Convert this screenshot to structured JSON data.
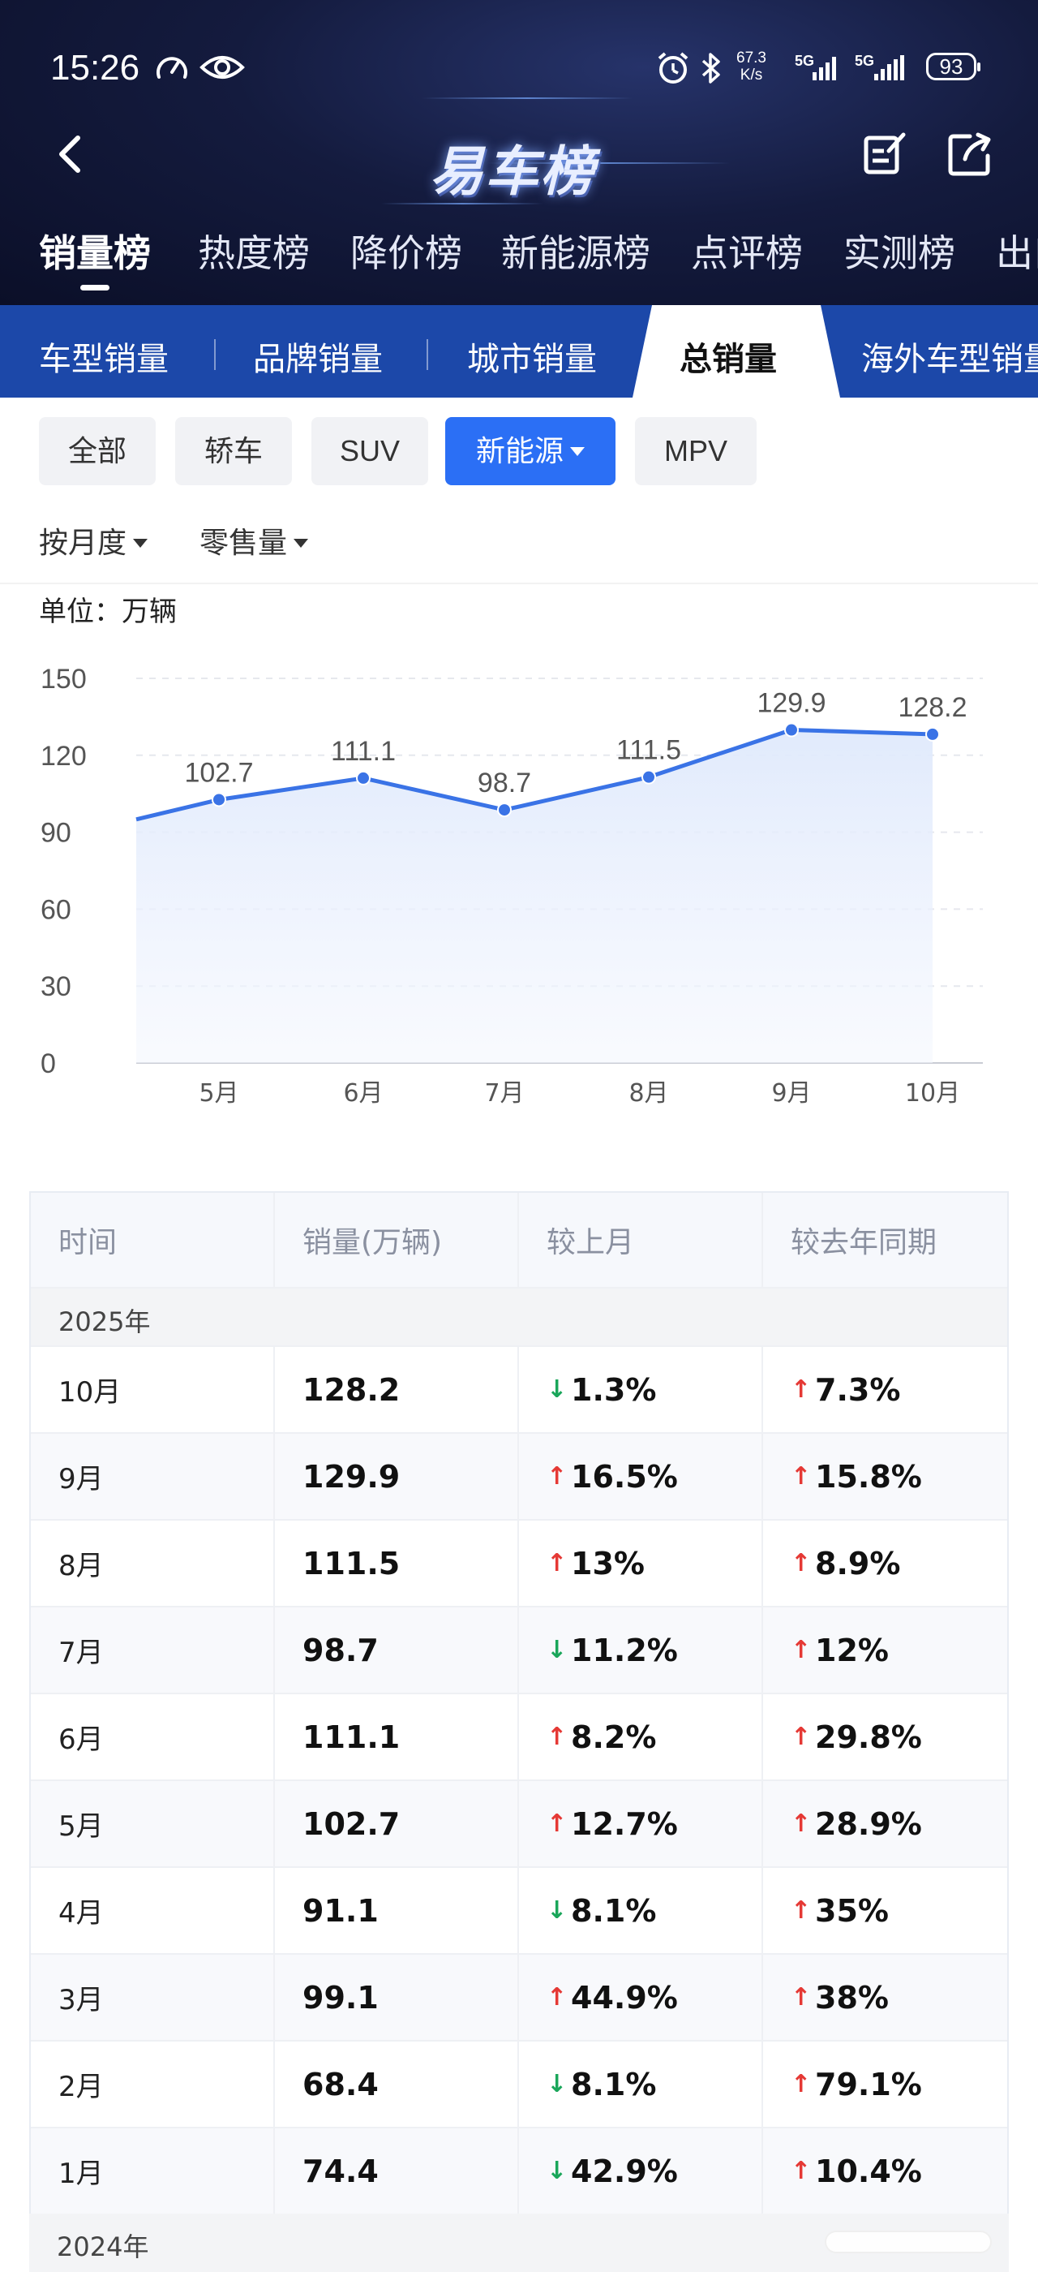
{
  "status_bar": {
    "time": "15:26",
    "net_speed_value": "67.3",
    "net_speed_unit": "K/s",
    "sig1": "5G",
    "sig2": "5G",
    "battery": "93"
  },
  "header": {
    "logo_text": "易车榜"
  },
  "rank_tabs": [
    {
      "label": "销量榜",
      "active": true
    },
    {
      "label": "热度榜"
    },
    {
      "label": "降价榜"
    },
    {
      "label": "新能源榜"
    },
    {
      "label": "点评榜"
    },
    {
      "label": "实测榜"
    },
    {
      "label": "出口"
    }
  ],
  "sub_tabs": [
    {
      "label": "车型销量"
    },
    {
      "label": "品牌销量"
    },
    {
      "label": "城市销量"
    },
    {
      "label": "总销量",
      "active": true
    },
    {
      "label": "海外车型销量"
    }
  ],
  "chips": [
    {
      "label": "全部"
    },
    {
      "label": "轿车"
    },
    {
      "label": "SUV"
    },
    {
      "label": "新能源",
      "active": true
    },
    {
      "label": "MPV"
    }
  ],
  "dropdowns": {
    "period": "按月度",
    "metric": "零售量"
  },
  "unit_label": "单位：万辆",
  "chart_data": {
    "type": "area",
    "x": [
      "5月",
      "6月",
      "7月",
      "8月",
      "9月",
      "10月"
    ],
    "values": [
      102.7,
      111.1,
      98.7,
      111.5,
      129.9,
      128.2
    ],
    "value_labels": [
      "102.7",
      "111.1",
      "98.7",
      "111.5",
      "129.9",
      "128.2"
    ],
    "left_edge_value": 95,
    "ylim": [
      0,
      150
    ],
    "yticks": [
      "0",
      "30",
      "60",
      "90",
      "120",
      "150"
    ],
    "ytick_values": [
      0,
      30,
      60,
      90,
      120,
      150
    ],
    "grid": true,
    "line_color": "#3a73e6"
  },
  "table": {
    "headers": [
      "时间",
      "销量(万辆)",
      "较上月",
      "较去年同期"
    ],
    "year_2025": "2025年",
    "year_2024": "2024年",
    "rows": [
      {
        "month": "10月",
        "value": "128.2",
        "mom": "1.3%",
        "mom_dir": "down",
        "yoy": "7.3%",
        "yoy_dir": "up"
      },
      {
        "month": "9月",
        "value": "129.9",
        "mom": "16.5%",
        "mom_dir": "up",
        "yoy": "15.8%",
        "yoy_dir": "up"
      },
      {
        "month": "8月",
        "value": "111.5",
        "mom": "13%",
        "mom_dir": "up",
        "yoy": "8.9%",
        "yoy_dir": "up"
      },
      {
        "month": "7月",
        "value": "98.7",
        "mom": "11.2%",
        "mom_dir": "down",
        "yoy": "12%",
        "yoy_dir": "up"
      },
      {
        "month": "6月",
        "value": "111.1",
        "mom": "8.2%",
        "mom_dir": "up",
        "yoy": "29.8%",
        "yoy_dir": "up"
      },
      {
        "month": "5月",
        "value": "102.7",
        "mom": "12.7%",
        "mom_dir": "up",
        "yoy": "28.9%",
        "yoy_dir": "up"
      },
      {
        "month": "4月",
        "value": "91.1",
        "mom": "8.1%",
        "mom_dir": "down",
        "yoy": "35%",
        "yoy_dir": "up"
      },
      {
        "month": "3月",
        "value": "99.1",
        "mom": "44.9%",
        "mom_dir": "up",
        "yoy": "38%",
        "yoy_dir": "up"
      },
      {
        "month": "2月",
        "value": "68.4",
        "mom": "8.1%",
        "mom_dir": "down",
        "yoy": "79.1%",
        "yoy_dir": "up"
      },
      {
        "month": "1月",
        "value": "74.4",
        "mom": "42.9%",
        "mom_dir": "down",
        "yoy": "10.4%",
        "yoy_dir": "up"
      }
    ]
  }
}
